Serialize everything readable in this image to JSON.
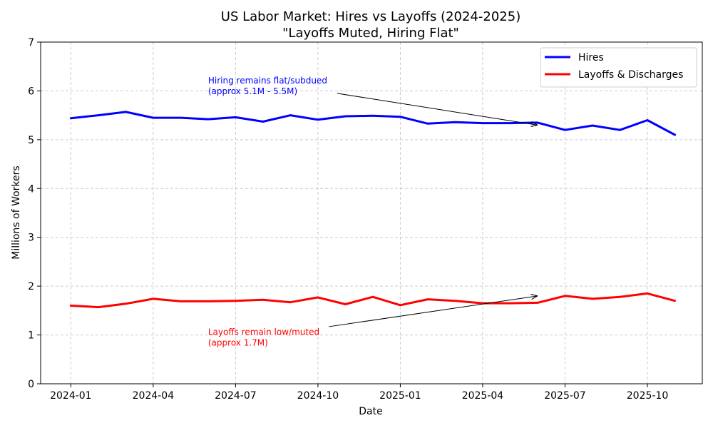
{
  "chart_data": {
    "type": "line",
    "title_line1": "US Labor Market: Hires vs Layoffs (2024-2025)",
    "title_line2": "\"Layoffs Muted, Hiring Flat\"",
    "xlabel": "Date",
    "ylabel": "Millions of Workers",
    "ylim": [
      0,
      7
    ],
    "yticks": [
      0,
      1,
      2,
      3,
      4,
      5,
      6,
      7
    ],
    "grid": true,
    "legend_position": "top-right",
    "x_month_index_start": 0,
    "x_month_index_end": 22,
    "x_range_months": [
      -1.1,
      23
    ],
    "x_ticks": [
      {
        "label": "2024-01",
        "month_index": 0
      },
      {
        "label": "2024-04",
        "month_index": 3
      },
      {
        "label": "2024-07",
        "month_index": 6
      },
      {
        "label": "2024-10",
        "month_index": 9
      },
      {
        "label": "2025-01",
        "month_index": 12
      },
      {
        "label": "2025-04",
        "month_index": 15
      },
      {
        "label": "2025-07",
        "month_index": 18
      },
      {
        "label": "2025-10",
        "month_index": 21
      }
    ],
    "series": [
      {
        "name": "Hires",
        "color": "#0000ff",
        "values": [
          5.44,
          5.5,
          5.57,
          5.45,
          5.45,
          5.42,
          5.46,
          5.37,
          5.5,
          5.41,
          5.48,
          5.49,
          5.47,
          5.33,
          5.36,
          5.34,
          5.34,
          5.35,
          5.2,
          5.29,
          5.2,
          5.4,
          5.1
        ]
      },
      {
        "name": "Layoffs & Discharges",
        "color": "#ff0000",
        "values": [
          1.6,
          1.57,
          1.64,
          1.74,
          1.69,
          1.69,
          1.7,
          1.72,
          1.67,
          1.77,
          1.63,
          1.78,
          1.61,
          1.73,
          1.7,
          1.65,
          1.65,
          1.66,
          1.8,
          1.74,
          1.78,
          1.85,
          1.7
        ]
      }
    ],
    "annotations": [
      {
        "name": "hires-annotation",
        "lines": [
          "Hiring remains flat/subdued",
          "(approx 5.1M - 5.5M)"
        ],
        "color": "#0000ff",
        "text_month": 5,
        "text_value": 6.15,
        "arrow_from_month": 9.7,
        "arrow_from_value": 5.95,
        "arrow_to_month": 17,
        "arrow_to_value": 5.3
      },
      {
        "name": "layoffs-annotation",
        "lines": [
          "Layoffs remain low/muted",
          "(approx 1.7M)"
        ],
        "color": "#ff0000",
        "text_month": 5,
        "text_value": 1.0,
        "arrow_from_month": 9.4,
        "arrow_from_value": 1.17,
        "arrow_to_month": 17,
        "arrow_to_value": 1.8
      }
    ]
  }
}
